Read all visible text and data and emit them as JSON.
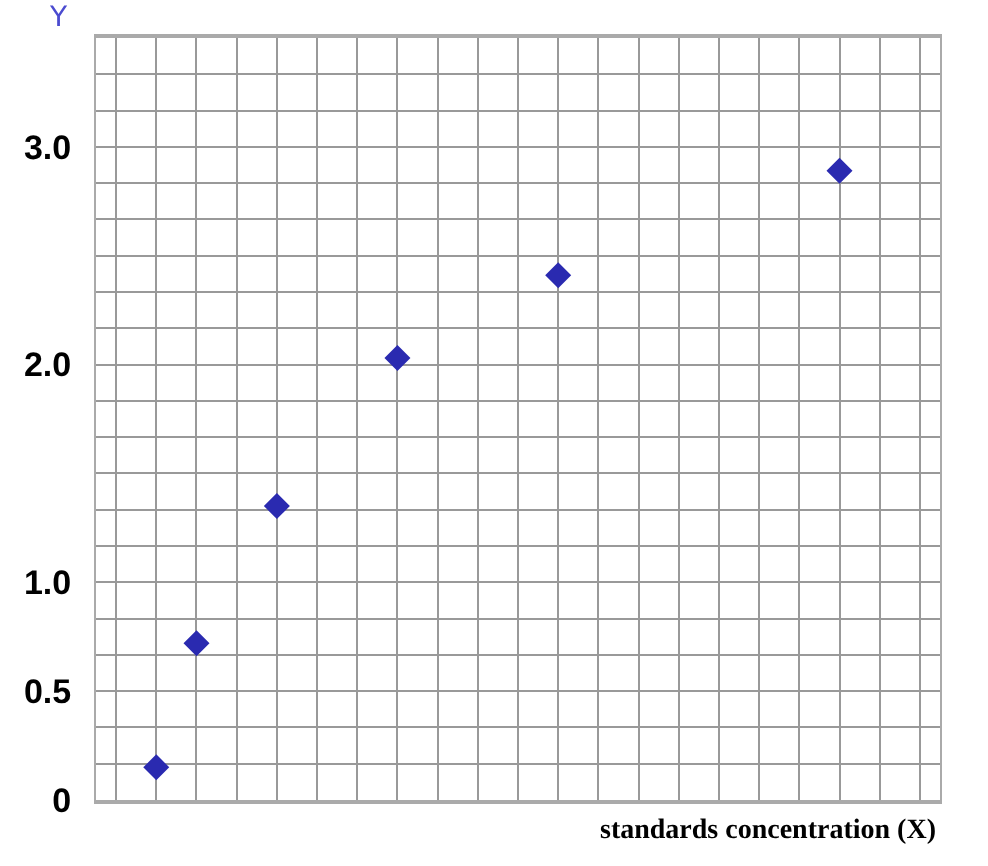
{
  "chart_data": {
    "type": "scatter",
    "xlabel": "standards concentration (X)",
    "ylabel": "Y",
    "categories": [
      null,
      null,
      null,
      null,
      null,
      null,
      null,
      null,
      null,
      null,
      null,
      null,
      null,
      null,
      null,
      null,
      null,
      null,
      null,
      null,
      null
    ],
    "values": [
      null,
      0.15,
      0.72,
      null,
      1.35,
      null,
      null,
      2.03,
      null,
      null,
      null,
      2.41,
      null,
      null,
      null,
      null,
      null,
      null,
      2.89,
      null,
      null
    ],
    "color": "#2a2ab0",
    "marker": "diamond",
    "ylim": [
      0,
      3.5
    ],
    "yticks": [
      {
        "value": 0,
        "label": "0"
      },
      {
        "value": 0.5,
        "label": "0.5"
      },
      {
        "value": 1,
        "label": "1.0"
      },
      {
        "value": 2,
        "label": "2.0"
      },
      {
        "value": 3,
        "label": "3.0"
      }
    ],
    "grid": true,
    "tick_labels": "y"
  }
}
